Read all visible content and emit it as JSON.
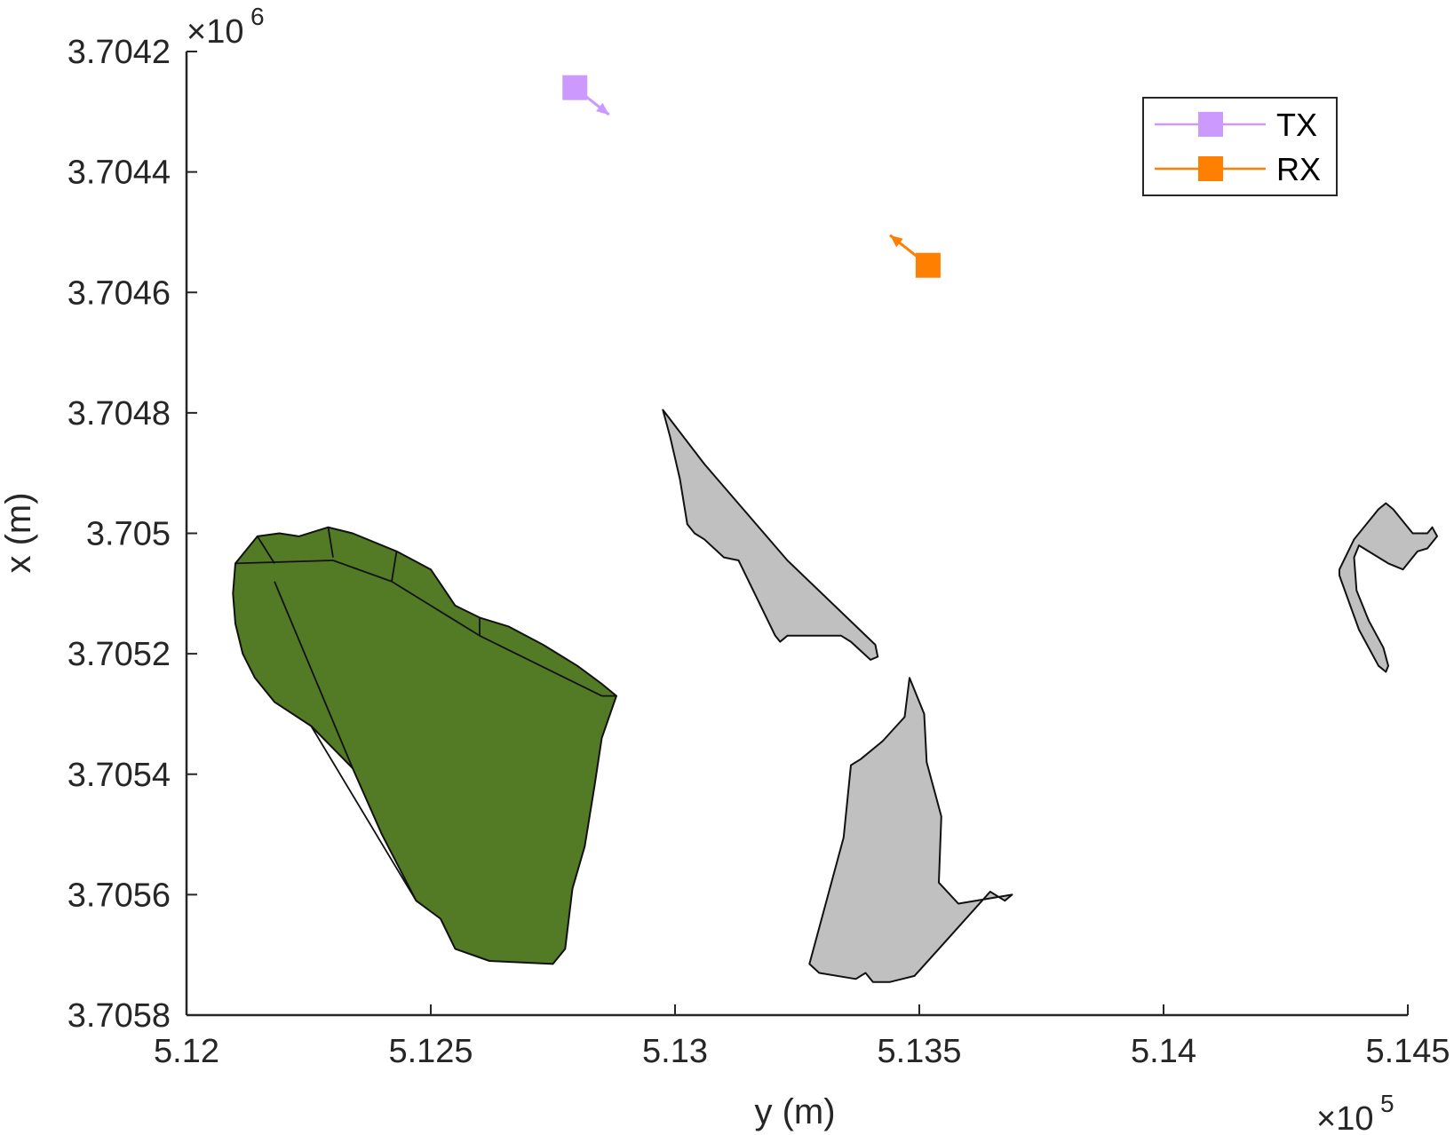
{
  "chart_data": {
    "type": "map",
    "xlabel": "y (m)",
    "ylabel": "x (m)",
    "x_exponent_label": "×10",
    "x_exponent_power": "5",
    "y_exponent_label": "×10",
    "y_exponent_power": "6",
    "xlim": [
      512000,
      514500
    ],
    "ylim": [
      3704200,
      3705800
    ],
    "y_reversed": true,
    "x_ticks": [
      {
        "value": 512000,
        "label": "5.12"
      },
      {
        "value": 512500,
        "label": "5.125"
      },
      {
        "value": 513000,
        "label": "5.13"
      },
      {
        "value": 513500,
        "label": "5.135"
      },
      {
        "value": 514000,
        "label": "5.14"
      },
      {
        "value": 514500,
        "label": "5.145"
      }
    ],
    "y_ticks": [
      {
        "value": 3704200,
        "label": "3.7042"
      },
      {
        "value": 3704400,
        "label": "3.7044"
      },
      {
        "value": 3704600,
        "label": "3.7046"
      },
      {
        "value": 3704800,
        "label": "3.7048"
      },
      {
        "value": 3705000,
        "label": "3.705"
      },
      {
        "value": 3705200,
        "label": "3.7052"
      },
      {
        "value": 3705400,
        "label": "3.7054"
      },
      {
        "value": 3705600,
        "label": "3.7056"
      },
      {
        "value": 3705800,
        "label": "3.7058"
      }
    ],
    "legend": {
      "placement": "top-right",
      "entries": [
        {
          "name": "TX",
          "color": "#cc99ff"
        },
        {
          "name": "RX",
          "color": "#ff8000"
        }
      ]
    },
    "markers": [
      {
        "name": "TX",
        "y": 512795,
        "x": 3704260,
        "dir_y": 512865,
        "dir_x": 3704305,
        "color": "#cc99ff"
      },
      {
        "name": "RX",
        "y": 513518,
        "x": 3704555,
        "dir_y": 513440,
        "dir_x": 3704505,
        "color": "#ff8000"
      }
    ],
    "polygons": [
      {
        "name": "gray-region-north",
        "fill": "#c0c0c0",
        "points": [
          [
            512975,
            3704795
          ],
          [
            513060,
            3704885
          ],
          [
            513230,
            3705045
          ],
          [
            513410,
            3705185
          ],
          [
            513415,
            3705205
          ],
          [
            513400,
            3705210
          ],
          [
            513360,
            3705180
          ],
          [
            513340,
            3705170
          ],
          [
            513300,
            3705170
          ],
          [
            513230,
            3705170
          ],
          [
            513215,
            3705180
          ],
          [
            513205,
            3705170
          ],
          [
            513130,
            3705045
          ],
          [
            513100,
            3705040
          ],
          [
            513060,
            3705010
          ],
          [
            513040,
            3705000
          ],
          [
            513025,
            3704985
          ],
          [
            513010,
            3704910
          ],
          [
            512990,
            3704840
          ]
        ]
      },
      {
        "name": "gray-region-south",
        "fill": "#c0c0c0",
        "points": [
          [
            513380,
            3705375
          ],
          [
            513425,
            3705345
          ],
          [
            513470,
            3705305
          ],
          [
            513480,
            3705240
          ],
          [
            513510,
            3705300
          ],
          [
            513515,
            3705380
          ],
          [
            513545,
            3705470
          ],
          [
            513540,
            3705580
          ],
          [
            513580,
            3705615
          ],
          [
            513690,
            3705600
          ],
          [
            513675,
            3705610
          ],
          [
            513645,
            3705595
          ],
          [
            513540,
            3705690
          ],
          [
            513490,
            3705735
          ],
          [
            513440,
            3705745
          ],
          [
            513405,
            3705745
          ],
          [
            513390,
            3705730
          ],
          [
            513370,
            3705740
          ],
          [
            513295,
            3705730
          ],
          [
            513275,
            3705715
          ],
          [
            513345,
            3705505
          ],
          [
            513360,
            3705385
          ]
        ]
      },
      {
        "name": "gray-region-east",
        "fill": "#c0c0c0",
        "points": [
          [
            514360,
            3705060
          ],
          [
            514390,
            3705010
          ],
          [
            514440,
            3704960
          ],
          [
            514455,
            3704950
          ],
          [
            514470,
            3704960
          ],
          [
            514510,
            3705000
          ],
          [
            514540,
            3705000
          ],
          [
            514550,
            3704990
          ],
          [
            514560,
            3705005
          ],
          [
            514540,
            3705025
          ],
          [
            514520,
            3705030
          ],
          [
            514490,
            3705060
          ],
          [
            514460,
            3705050
          ],
          [
            514400,
            3705020
          ],
          [
            514390,
            3705040
          ],
          [
            514395,
            3705095
          ],
          [
            514420,
            3705145
          ],
          [
            514450,
            3705190
          ],
          [
            514460,
            3705220
          ],
          [
            514455,
            3705230
          ],
          [
            514440,
            3705220
          ],
          [
            514400,
            3705160
          ],
          [
            514360,
            3705070
          ]
        ]
      },
      {
        "name": "green-area",
        "fill": "#537a25",
        "points": [
          [
            512145,
            3705005
          ],
          [
            512190,
            3705000
          ],
          [
            512230,
            3705005
          ],
          [
            512290,
            3704990
          ],
          [
            512340,
            3705000
          ],
          [
            512430,
            3705030
          ],
          [
            512500,
            3705060
          ],
          [
            512550,
            3705120
          ],
          [
            512600,
            3705140
          ],
          [
            512660,
            3705155
          ],
          [
            512730,
            3705185
          ],
          [
            512800,
            3705220
          ],
          [
            512850,
            3705250
          ],
          [
            512880,
            3705270
          ],
          [
            512850,
            3705340
          ],
          [
            512835,
            3705420
          ],
          [
            512815,
            3705520
          ],
          [
            512790,
            3705590
          ],
          [
            512775,
            3705690
          ],
          [
            512750,
            3705715
          ],
          [
            512620,
            3705710
          ],
          [
            512550,
            3705690
          ],
          [
            512520,
            3705640
          ],
          [
            512470,
            3705610
          ],
          [
            512400,
            3705500
          ],
          [
            512340,
            3705390
          ],
          [
            512255,
            3705320
          ],
          [
            512180,
            3705280
          ],
          [
            512140,
            3705240
          ],
          [
            512115,
            3705200
          ],
          [
            512100,
            3705150
          ],
          [
            512095,
            3705100
          ],
          [
            512100,
            3705050
          ]
        ]
      }
    ]
  }
}
